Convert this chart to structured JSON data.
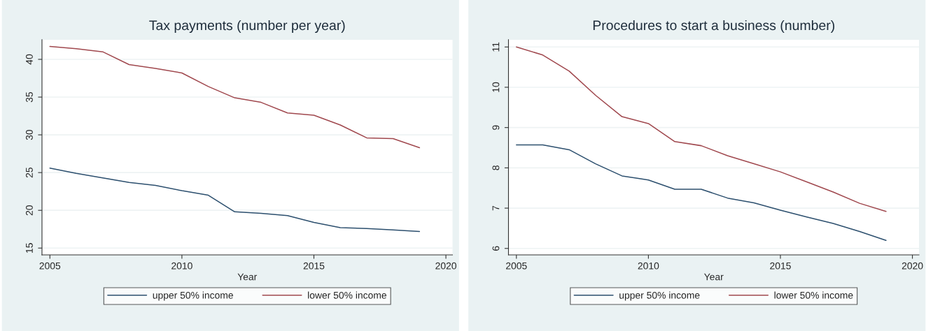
{
  "chart_data": [
    {
      "type": "line",
      "title": "Tax payments (number per year)",
      "xlabel": "Year",
      "x": [
        2005,
        2006,
        2007,
        2008,
        2009,
        2010,
        2011,
        2012,
        2013,
        2014,
        2015,
        2016,
        2017,
        2018,
        2019
      ],
      "series": [
        {
          "name": "upper 50% income",
          "color": "#2c4f6e",
          "values": [
            25.6,
            24.9,
            24.3,
            23.7,
            23.3,
            22.6,
            22.0,
            19.8,
            19.6,
            19.3,
            18.4,
            17.7,
            17.6,
            17.4,
            17.2
          ]
        },
        {
          "name": "lower 50% income",
          "color": "#a0484e",
          "values": [
            41.7,
            41.4,
            41.0,
            39.3,
            38.8,
            38.2,
            36.4,
            34.9,
            34.3,
            32.9,
            32.6,
            31.3,
            29.6,
            29.5,
            28.3
          ]
        }
      ],
      "xlim": [
        2004.7,
        2020.25
      ],
      "xticks": [
        2005,
        2010,
        2015,
        2020
      ],
      "ylim": [
        14.1,
        42.6
      ],
      "yticks": [
        15,
        20,
        25,
        30,
        35,
        40
      ],
      "grid": "y",
      "legend": "bottom"
    },
    {
      "type": "line",
      "title": "Procedures to start a business (number)",
      "xlabel": "Year",
      "x": [
        2005,
        2006,
        2007,
        2008,
        2009,
        2010,
        2011,
        2012,
        2013,
        2014,
        2015,
        2016,
        2017,
        2018,
        2019
      ],
      "series": [
        {
          "name": "upper 50% income",
          "color": "#2c4f6e",
          "values": [
            8.57,
            8.57,
            8.45,
            8.1,
            7.8,
            7.7,
            7.47,
            7.47,
            7.25,
            7.13,
            6.95,
            6.78,
            6.62,
            6.42,
            6.2
          ]
        },
        {
          "name": "lower 50% income",
          "color": "#a0484e",
          "values": [
            11.0,
            10.8,
            10.4,
            9.8,
            9.27,
            9.1,
            8.65,
            8.55,
            8.3,
            8.1,
            7.9,
            7.65,
            7.4,
            7.12,
            6.92
          ]
        }
      ],
      "xlim": [
        2004.7,
        2020.25
      ],
      "xticks": [
        2005,
        2010,
        2015,
        2020
      ],
      "ylim": [
        5.84,
        11.18
      ],
      "yticks": [
        6,
        7,
        8,
        9,
        10,
        11
      ],
      "grid": "y",
      "legend": "bottom"
    }
  ]
}
